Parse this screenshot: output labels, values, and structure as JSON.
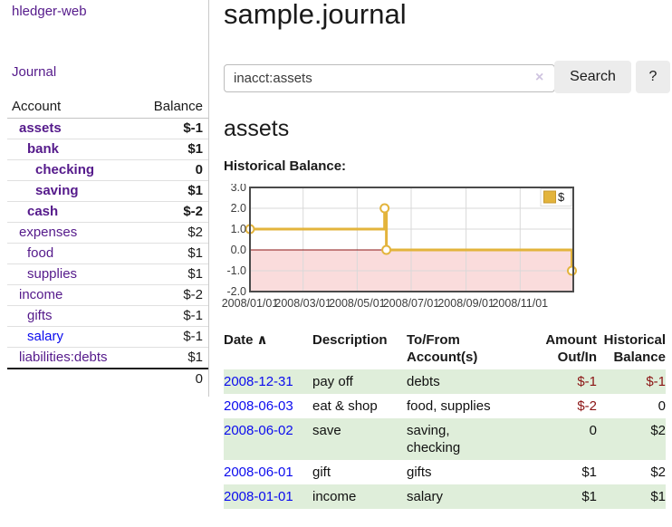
{
  "app": {
    "brand": "hledger-web",
    "nav": {
      "journal": "Journal"
    }
  },
  "colors": {
    "link_purple": "#551a8b",
    "link_blue": "#0b0bee",
    "negative_strong": "#8b1414",
    "negative_soft": "#b87878",
    "row_green": "#dfeeda",
    "chart_line_gold": "#e3b43c",
    "chart_negative_fill": "#fadcdc",
    "chart_zero_line": "#8b1414"
  },
  "sidebar": {
    "account_header": "Account",
    "balance_header": "Balance",
    "accounts": [
      {
        "name": "assets",
        "balance": "$-1",
        "depth": 0,
        "bold": true
      },
      {
        "name": "bank",
        "balance": "$1",
        "depth": 1,
        "bold": true
      },
      {
        "name": "checking",
        "balance": "0",
        "depth": 2,
        "bold": true
      },
      {
        "name": "saving",
        "balance": "$1",
        "depth": 2,
        "bold": true
      },
      {
        "name": "cash",
        "balance": "$-2",
        "depth": 1,
        "bold": true
      },
      {
        "name": "expenses",
        "balance": "$2",
        "depth": 0
      },
      {
        "name": "food",
        "balance": "$1",
        "depth": 1
      },
      {
        "name": "supplies",
        "balance": "$1",
        "depth": 1
      },
      {
        "name": "income",
        "balance": "$-2",
        "depth": 0,
        "soft_negative": true
      },
      {
        "name": "gifts",
        "balance": "$-1",
        "depth": 1,
        "soft_negative": true
      },
      {
        "name": "salary",
        "balance": "$-1",
        "depth": 1,
        "soft_negative": true,
        "link_color": "blue"
      },
      {
        "name": "liabilities:debts",
        "balance": "$1",
        "depth": 0
      }
    ],
    "total": "0"
  },
  "main": {
    "title": "sample.journal",
    "search": {
      "value": "inacct:assets",
      "clear_icon": "×",
      "search_button": "Search",
      "help_button": "?"
    },
    "account_heading": "assets",
    "section_label": "Historical Balance:"
  },
  "chart_data": {
    "type": "line",
    "title": "Historical Balance",
    "step": true,
    "x_domain": [
      "2008-01-01",
      "2008-12-31"
    ],
    "ylim": [
      -2,
      3
    ],
    "ytick_labels": [
      "3.0",
      "2.0",
      "1.0",
      "0.0",
      "-1.0",
      "-2.0"
    ],
    "xtick_labels": [
      "2008/01/01",
      "2008/03/01",
      "2008/05/01",
      "2008/07/01",
      "2008/09/01",
      "2008/11/01"
    ],
    "grid": true,
    "legend": {
      "label": "$",
      "position": "top-right"
    },
    "series": [
      {
        "name": "$",
        "points": [
          {
            "date": "2008-01-01",
            "value": 1
          },
          {
            "date": "2008-06-01",
            "value": 2
          },
          {
            "date": "2008-06-03",
            "value": 0
          },
          {
            "date": "2008-12-31",
            "value": -1
          }
        ]
      }
    ]
  },
  "register": {
    "headers": {
      "date": "Date",
      "sort_icon": "∧",
      "description": "Description",
      "accounts": "To/From Account(s)",
      "amount": "Amount Out/In",
      "balance": "Historical Balance"
    },
    "rows": [
      {
        "date": "2008-12-31",
        "description": "pay off",
        "accounts": "debts",
        "amount": "$-1",
        "balance": "$-1"
      },
      {
        "date": "2008-06-03",
        "description": "eat & shop",
        "accounts": "food, supplies",
        "amount": "$-2",
        "balance": "0"
      },
      {
        "date": "2008-06-02",
        "description": "save",
        "accounts": "saving, checking",
        "amount": "0",
        "balance": "$2"
      },
      {
        "date": "2008-06-01",
        "description": "gift",
        "accounts": "gifts",
        "amount": "$1",
        "balance": "$2"
      },
      {
        "date": "2008-01-01",
        "description": "income",
        "accounts": "salary",
        "amount": "$1",
        "balance": "$1"
      }
    ]
  }
}
